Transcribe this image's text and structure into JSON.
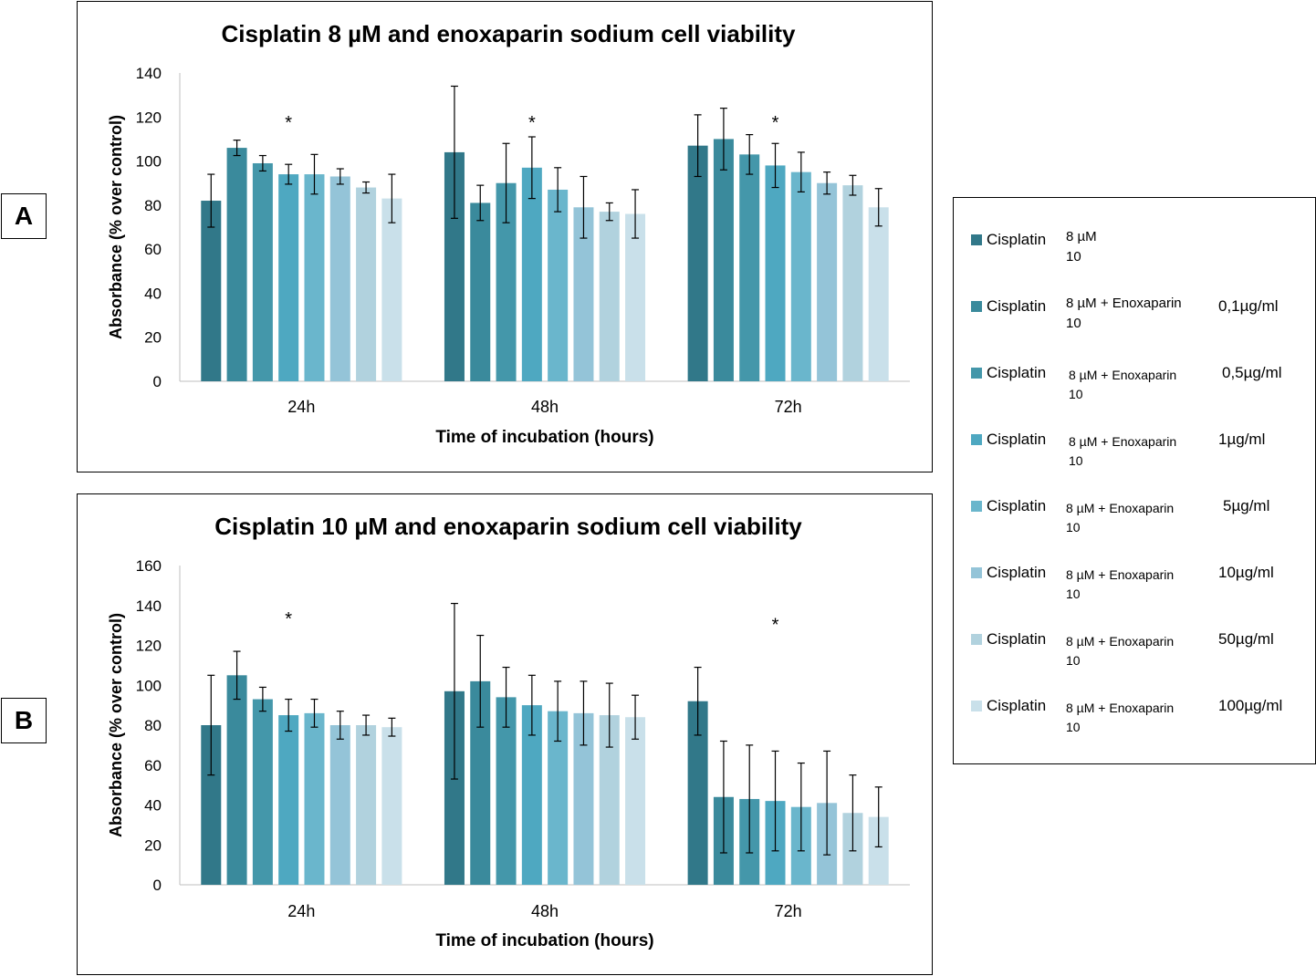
{
  "panels": [
    {
      "label": "A",
      "chart_data": {
        "type": "bar",
        "title": "Cisplatin 8 µM and enoxaparin sodium cell viability",
        "xlabel": "Time of incubation (hours)",
        "ylabel": "Absorbance (% over control)",
        "ylim": [
          0,
          140
        ],
        "yticks": [
          0,
          20,
          40,
          60,
          80,
          100,
          120,
          140
        ],
        "categories": [
          "24h",
          "48h",
          "72h"
        ],
        "series": [
          {
            "name": "Cisplatin 8 µM 10",
            "values": [
              82,
              104,
              107
            ],
            "errors": [
              12,
              30,
              14
            ]
          },
          {
            "name": "Cisplatin 8 µM + Enoxaparin 10 0,1µg/ml",
            "values": [
              106,
              81,
              110
            ],
            "errors": [
              3.5,
              8,
              14
            ]
          },
          {
            "name": "Cisplatin 8 µM + Enoxaparin 10 0,5µg/ml",
            "values": [
              99,
              90,
              103
            ],
            "errors": [
              3.5,
              18,
              9
            ]
          },
          {
            "name": "Cisplatin 8 µM + Enoxaparin 10 1µg/ml",
            "values": [
              94,
              97,
              98
            ],
            "errors": [
              4.5,
              14,
              10
            ]
          },
          {
            "name": "Cisplatin 8 µM + Enoxaparin 10 5µg/ml",
            "values": [
              94,
              87,
              95
            ],
            "errors": [
              9,
              10,
              9
            ]
          },
          {
            "name": "Cisplatin 8 µM + Enoxaparin 10 10µg/ml",
            "values": [
              93,
              79,
              90
            ],
            "errors": [
              3.5,
              14,
              5
            ]
          },
          {
            "name": "Cisplatin 8 µM + Enoxaparin 10 50µg/ml",
            "values": [
              88,
              77,
              89
            ],
            "errors": [
              2.5,
              4,
              4.5
            ]
          },
          {
            "name": "Cisplatin 8 µM + Enoxaparin 10 100µg/ml",
            "values": [
              83,
              76,
              79
            ],
            "errors": [
              11,
              11,
              8.5
            ]
          }
        ],
        "annotations": [
          {
            "text": "*",
            "category": "24h",
            "value": 118
          },
          {
            "text": "*",
            "category": "48h",
            "value": 118
          },
          {
            "text": "*",
            "category": "72h",
            "value": 118
          }
        ]
      }
    },
    {
      "label": "B",
      "chart_data": {
        "type": "bar",
        "title": "Cisplatin 10 µM and enoxaparin sodium cell viability",
        "xlabel": "Time of incubation (hours)",
        "ylabel": "Absorbance (% over control)",
        "ylim": [
          0,
          160
        ],
        "yticks": [
          0,
          20,
          40,
          60,
          80,
          100,
          120,
          140,
          160
        ],
        "categories": [
          "24h",
          "48h",
          "72h"
        ],
        "series": [
          {
            "name": "Cisplatin 8 µM 10",
            "values": [
              80,
              97,
              92
            ],
            "errors": [
              25,
              44,
              17
            ]
          },
          {
            "name": "Cisplatin 8 µM + Enoxaparin 10 0,1µg/ml",
            "values": [
              105,
              102,
              44
            ],
            "errors": [
              12,
              23,
              28
            ]
          },
          {
            "name": "Cisplatin 8 µM + Enoxaparin 10 0,5µg/ml",
            "values": [
              93,
              94,
              43
            ],
            "errors": [
              6,
              15,
              27
            ]
          },
          {
            "name": "Cisplatin 8 µM + Enoxaparin 10 1µg/ml",
            "values": [
              85,
              90,
              42
            ],
            "errors": [
              8,
              15,
              25
            ]
          },
          {
            "name": "Cisplatin 8 µM + Enoxaparin 10 5µg/ml",
            "values": [
              86,
              87,
              39
            ],
            "errors": [
              7,
              15,
              22
            ]
          },
          {
            "name": "Cisplatin 8 µM + Enoxaparin 10 10µg/ml",
            "values": [
              80,
              86,
              41
            ],
            "errors": [
              7,
              16,
              26
            ]
          },
          {
            "name": "Cisplatin 8 µM + Enoxaparin 10 50µg/ml",
            "values": [
              80,
              85,
              36
            ],
            "errors": [
              5,
              16,
              19
            ]
          },
          {
            "name": "Cisplatin 8 µM + Enoxaparin 10 100µg/ml",
            "values": [
              79,
              84,
              34
            ],
            "errors": [
              4.5,
              11,
              15
            ]
          }
        ],
        "annotations": [
          {
            "text": "*",
            "category": "24h",
            "value": 134
          },
          {
            "text": "*",
            "category": "72h",
            "value": 131
          }
        ]
      }
    }
  ],
  "colors": [
    "#317889",
    "#3a8a9c",
    "#4497aa",
    "#4ea8c1",
    "#6ab6cc",
    "#94c4d8",
    "#b1d2de",
    "#c9e0ea"
  ],
  "legend": {
    "items": [
      {
        "drug": "Cisplatin",
        "dose": "8 µM",
        "dose2": "10",
        "conc": ""
      },
      {
        "drug": "Cisplatin",
        "dose": "8 µM + Enoxaparin",
        "dose2": "10",
        "conc": "0,1µg/ml"
      },
      {
        "drug": "Cisplatin",
        "dose": "8 µM + Enoxaparin",
        "dose2": "10",
        "conc": "0,5µg/ml"
      },
      {
        "drug": "Cisplatin",
        "dose": "8 µM + Enoxaparin",
        "dose2": "10",
        "conc": "1µg/ml"
      },
      {
        "drug": "Cisplatin",
        "dose": "8 µM + Enoxaparin",
        "dose2": "10",
        "conc": "5µg/ml"
      },
      {
        "drug": "Cisplatin",
        "dose": "8 µM + Enoxaparin",
        "dose2": "10",
        "conc": "10µg/ml"
      },
      {
        "drug": "Cisplatin",
        "dose": "8 µM + Enoxaparin",
        "dose2": "10",
        "conc": "50µg/ml"
      },
      {
        "drug": "Cisplatin",
        "dose": "8 µM + Enoxaparin",
        "dose2": "10",
        "conc": "100µg/ml"
      }
    ]
  }
}
